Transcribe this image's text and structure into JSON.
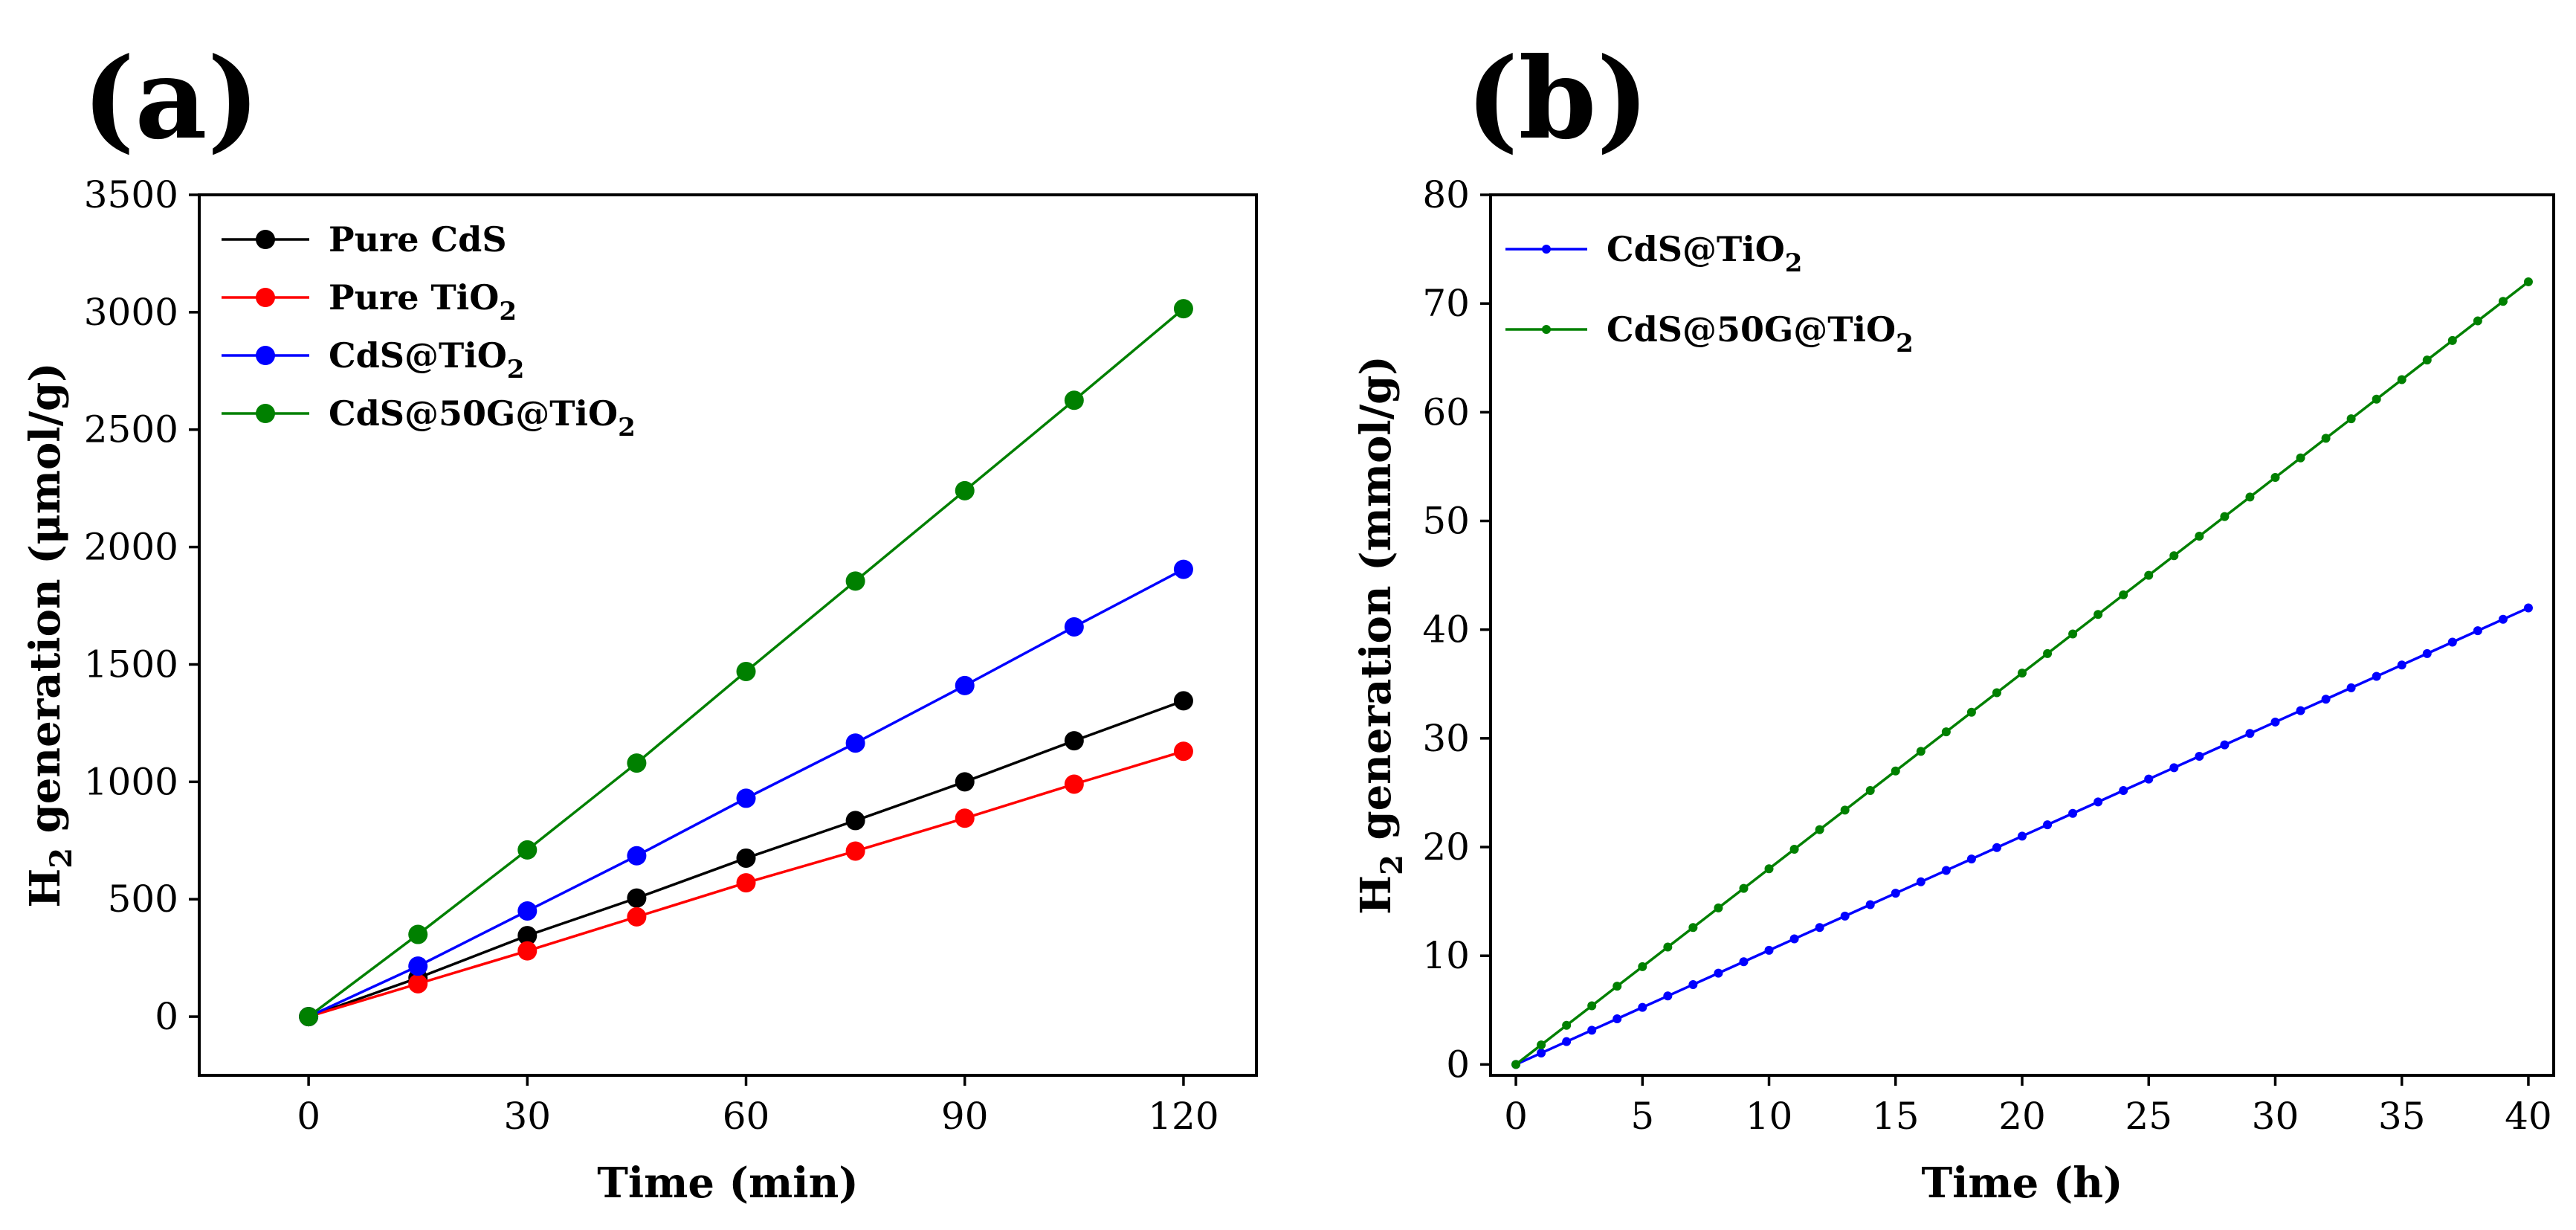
{
  "chart_data": [
    {
      "type": "line",
      "panel_label": "(a)",
      "xlabel": "Time (min)",
      "ylabel_parts": [
        "H",
        "2",
        " generation (μmol/g)"
      ],
      "xlim": [
        -15,
        130
      ],
      "ylim": [
        -250,
        3500
      ],
      "xticks": [
        0,
        30,
        60,
        90,
        120
      ],
      "yticks": [
        0,
        500,
        1000,
        1500,
        2000,
        2500,
        3000,
        3500
      ],
      "legend_position": "top-left",
      "x": [
        0,
        15,
        30,
        45,
        60,
        75,
        90,
        105,
        120
      ],
      "series": [
        {
          "name": "Pure CdS",
          "name_parts": [
            "Pure CdS"
          ],
          "color": "#000000",
          "values": [
            0,
            165,
            345,
            505,
            675,
            835,
            1000,
            1175,
            1345
          ]
        },
        {
          "name": "Pure TiO2",
          "name_parts": [
            "Pure TiO",
            "2",
            ""
          ],
          "color": "#ff0000",
          "values": [
            0,
            140,
            280,
            425,
            570,
            705,
            845,
            990,
            1130
          ]
        },
        {
          "name": "CdS@TiO2",
          "name_parts": [
            "CdS@TiO",
            "2",
            ""
          ],
          "color": "#0000ff",
          "values": [
            0,
            215,
            450,
            685,
            930,
            1165,
            1410,
            1660,
            1905
          ]
        },
        {
          "name": "CdS@50G@TiO2",
          "name_parts": [
            "CdS@50G@TiO",
            "2",
            ""
          ],
          "color": "#008000",
          "values": [
            0,
            350,
            710,
            1080,
            1470,
            1855,
            2240,
            2625,
            3015
          ]
        }
      ]
    },
    {
      "type": "line",
      "panel_label": "(b)",
      "xlabel": "Time (h)",
      "ylabel_parts": [
        "H",
        "2",
        " generation (mmol/g)"
      ],
      "xlim": [
        -1,
        41
      ],
      "ylim": [
        -1,
        80
      ],
      "xticks": [
        0,
        5,
        10,
        15,
        20,
        25,
        30,
        35,
        40
      ],
      "yticks": [
        0,
        10,
        20,
        30,
        40,
        50,
        60,
        70,
        80
      ],
      "legend_position": "top-left",
      "x": [
        0,
        1,
        2,
        3,
        4,
        5,
        6,
        7,
        8,
        9,
        10,
        11,
        12,
        13,
        14,
        15,
        16,
        17,
        18,
        19,
        20,
        21,
        22,
        23,
        24,
        25,
        26,
        27,
        28,
        29,
        30,
        31,
        32,
        33,
        34,
        35,
        36,
        37,
        38,
        39,
        40
      ],
      "series": [
        {
          "name": "CdS@TiO2",
          "name_parts": [
            "CdS@TiO",
            "2",
            ""
          ],
          "color": "#0000ff",
          "values": [
            0,
            1.05,
            2.1,
            3.15,
            4.2,
            5.25,
            6.3,
            7.35,
            8.4,
            9.45,
            10.5,
            11.55,
            12.6,
            13.65,
            14.7,
            15.75,
            16.8,
            17.85,
            18.9,
            19.95,
            21,
            22.05,
            23.1,
            24.15,
            25.2,
            26.25,
            27.3,
            28.35,
            29.4,
            30.45,
            31.5,
            32.55,
            33.6,
            34.65,
            35.7,
            36.75,
            37.8,
            38.85,
            39.9,
            40.95,
            42
          ]
        },
        {
          "name": "CdS@50G@TiO2",
          "name_parts": [
            "CdS@50G@TiO",
            "2",
            ""
          ],
          "color": "#008000",
          "values": [
            0,
            1.8,
            3.6,
            5.4,
            7.2,
            9,
            10.8,
            12.6,
            14.4,
            16.2,
            18,
            19.8,
            21.6,
            23.4,
            25.2,
            27,
            28.8,
            30.6,
            32.4,
            34.2,
            36,
            37.8,
            39.6,
            41.4,
            43.2,
            45,
            46.8,
            48.6,
            50.4,
            52.2,
            54,
            55.8,
            57.6,
            59.4,
            61.2,
            63,
            64.8,
            66.6,
            68.4,
            70.2,
            72
          ]
        }
      ]
    }
  ]
}
